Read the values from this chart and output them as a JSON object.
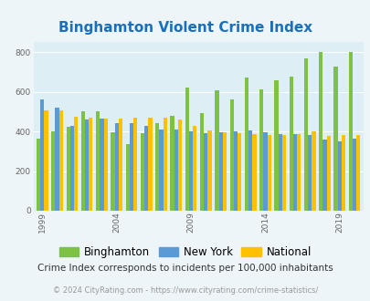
{
  "title": "Binghamton Violent Crime Index",
  "title_color": "#1a6fba",
  "subtitle": "Crime Index corresponds to incidents per 100,000 inhabitants",
  "footer": "© 2024 CityRating.com - https://www.cityrating.com/crime-statistics/",
  "years": [
    1999,
    2000,
    2001,
    2002,
    2003,
    2004,
    2005,
    2006,
    2007,
    2008,
    2009,
    2010,
    2011,
    2012,
    2013,
    2014,
    2015,
    2016,
    2017,
    2018,
    2019,
    2020
  ],
  "binghamton": [
    365,
    400,
    425,
    500,
    500,
    395,
    335,
    390,
    440,
    480,
    620,
    490,
    605,
    560,
    670,
    610,
    660,
    675,
    770,
    800,
    725,
    800
  ],
  "new_york": [
    560,
    520,
    430,
    460,
    465,
    440,
    440,
    430,
    410,
    410,
    400,
    390,
    395,
    400,
    405,
    395,
    385,
    385,
    380,
    360,
    350,
    365
  ],
  "national": [
    505,
    505,
    475,
    470,
    465,
    465,
    470,
    470,
    470,
    460,
    430,
    405,
    395,
    390,
    385,
    380,
    380,
    385,
    400,
    375,
    380,
    380
  ],
  "bar_colors": [
    "#7dc242",
    "#5b9bd5",
    "#ffc000"
  ],
  "bg_color": "#eef5f8",
  "plot_bg": "#ddeef5",
  "ylim": [
    0,
    850
  ],
  "yticks": [
    0,
    200,
    400,
    600,
    800
  ],
  "legend_labels": [
    "Binghamton",
    "New York",
    "National"
  ],
  "highlight_years": [
    1999,
    2004,
    2009,
    2014,
    2019
  ]
}
